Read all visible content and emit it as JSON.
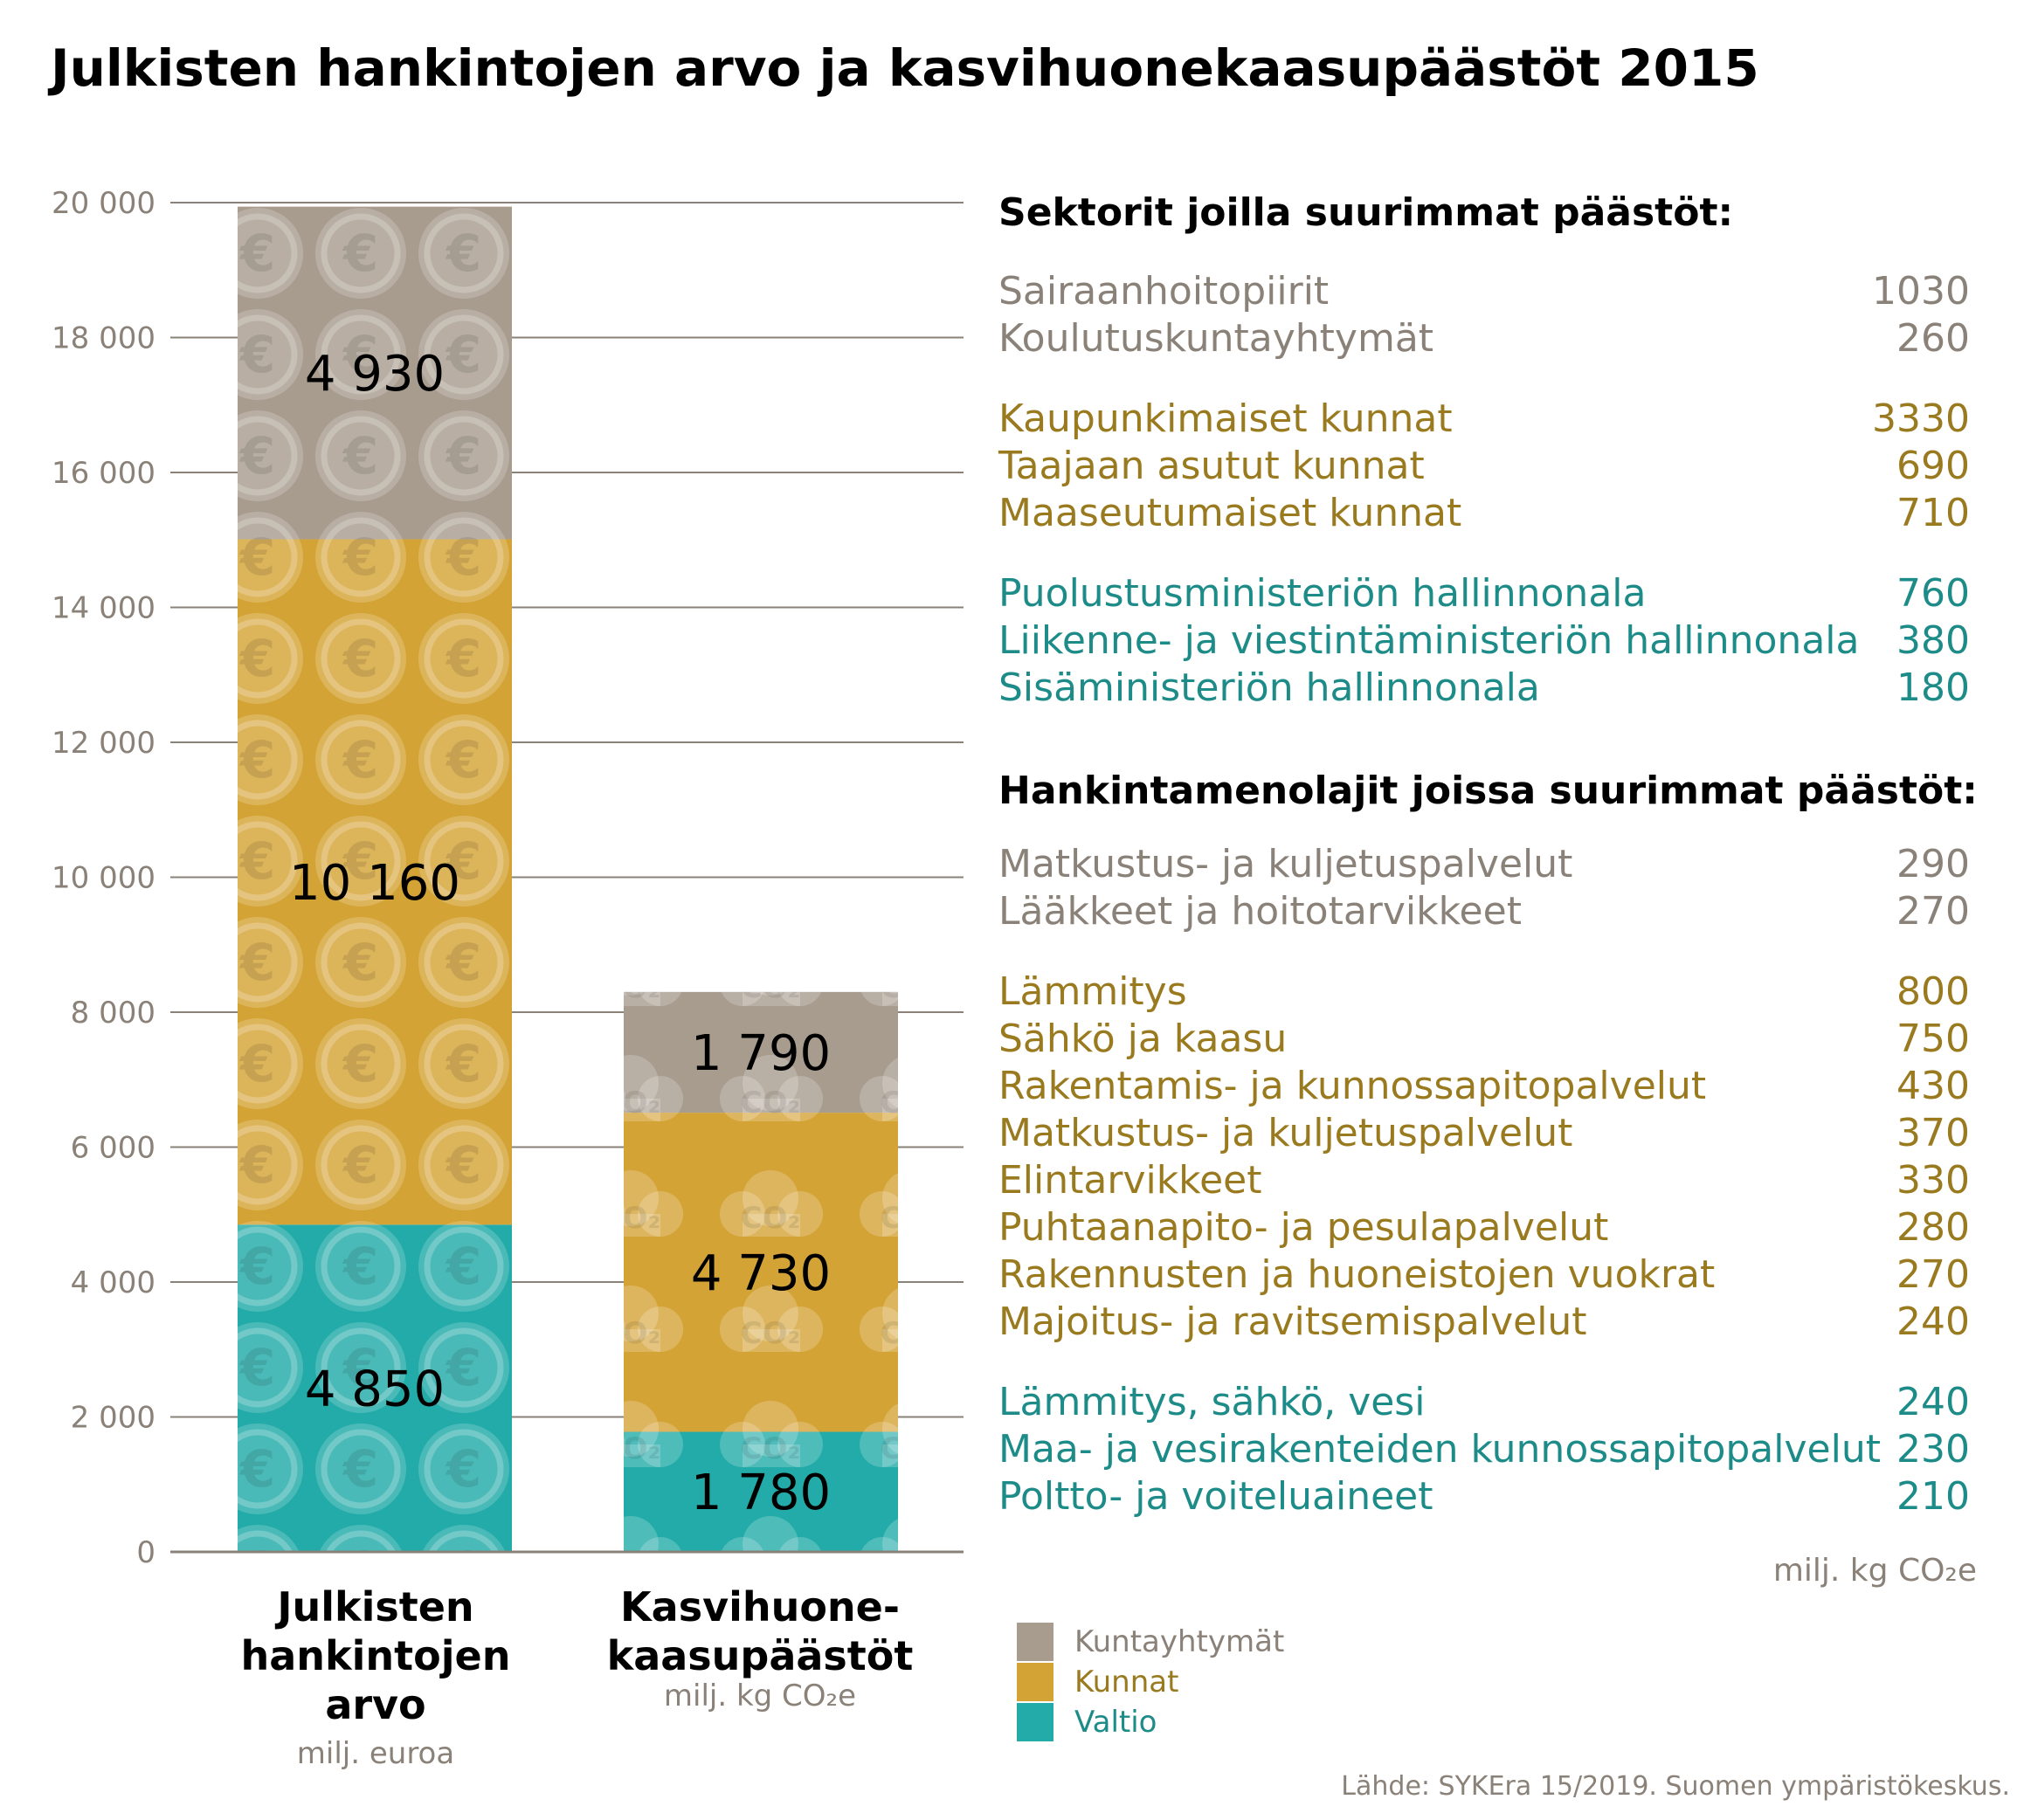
{
  "title": "Julkisten hankintojen arvo ja kasvihuonekaasupäästöt 2015",
  "colors": {
    "kuntayhtymat": "#a89c8f",
    "kunnat": "#d4a336",
    "valtio": "#22aba8",
    "grid": "#8a8178",
    "text_grey": "#8a8178",
    "text_gold": "#9a7a1f",
    "text_teal": "#1d8c88"
  },
  "chart_data": {
    "type": "bar",
    "stacked": true,
    "categories": [
      "Julkisten hankintojen arvo",
      "Kasvihuonekaasupäästöt"
    ],
    "category_titles": [
      [
        "Julkisten",
        "hankintojen",
        "arvo"
      ],
      [
        "Kasvihuone-",
        "kaasupäästöt"
      ]
    ],
    "category_units": [
      "milj. euroa",
      "milj. kg CO₂e"
    ],
    "series": [
      {
        "name": "Valtio",
        "color": "#22aba8",
        "values": [
          4850,
          1780
        ],
        "labels": [
          "4 850",
          "1 780"
        ]
      },
      {
        "name": "Kunnat",
        "color": "#d4a336",
        "values": [
          10160,
          4730
        ],
        "labels": [
          "10 160",
          "4 730"
        ]
      },
      {
        "name": "Kuntayhtymät",
        "color": "#a89c8f",
        "values": [
          4930,
          1790
        ],
        "labels": [
          "4 930",
          "1 790"
        ]
      }
    ],
    "ylim": [
      0,
      20000
    ],
    "yticks": [
      0,
      2000,
      4000,
      6000,
      8000,
      10000,
      12000,
      14000,
      16000,
      18000,
      20000
    ],
    "ytick_labels": [
      "0",
      "2 000",
      "4 000",
      "6 000",
      "8 000",
      "10 000",
      "12 000",
      "14 000",
      "16 000",
      "18 000",
      "20 000"
    ],
    "grid": true,
    "legend_position": "bottom-right"
  },
  "legend": [
    {
      "label": "Kuntayhtymät",
      "color": "#a89c8f"
    },
    {
      "label": "Kunnat",
      "color": "#d4a336"
    },
    {
      "label": "Valtio",
      "color": "#22aba8"
    }
  ],
  "sectors": {
    "heading": "Sektorit joilla suurimmat päästöt:",
    "groups": [
      {
        "color": "#8a8178",
        "items": [
          {
            "label": "Sairaanhoitopiirit",
            "value": "1030"
          },
          {
            "label": "Koulutuskuntayhtymät",
            "value": "260"
          }
        ]
      },
      {
        "color": "#9a7a1f",
        "items": [
          {
            "label": "Kaupunkimaiset kunnat",
            "value": "3330"
          },
          {
            "label": "Taajaan asutut kunnat",
            "value": "690"
          },
          {
            "label": "Maaseutumaiset kunnat",
            "value": "710"
          }
        ]
      },
      {
        "color": "#1d8c88",
        "items": [
          {
            "label": "Puolustusministeriön hallinnonala",
            "value": "760"
          },
          {
            "label": "Liikenne- ja viestintäministeriön hallinnonala",
            "value": "380"
          },
          {
            "label": "Sisäministeriön hallinnonala",
            "value": "180"
          }
        ]
      }
    ]
  },
  "types": {
    "heading": "Hankintamenolajit joissa suurimmat päästöt:",
    "groups": [
      {
        "color": "#8a8178",
        "items": [
          {
            "label": "Matkustus- ja kuljetuspalvelut",
            "value": "290"
          },
          {
            "label": "Lääkkeet ja hoitotarvikkeet",
            "value": "270"
          }
        ]
      },
      {
        "color": "#9a7a1f",
        "items": [
          {
            "label": "Lämmitys",
            "value": "800"
          },
          {
            "label": "Sähkö ja kaasu",
            "value": "750"
          },
          {
            "label": "Rakentamis- ja kunnossapitopalvelut",
            "value": "430"
          },
          {
            "label": "Matkustus- ja kuljetuspalvelut",
            "value": "370"
          },
          {
            "label": "Elintarvikkeet",
            "value": "330"
          },
          {
            "label": "Puhtaanapito- ja pesulapalvelut",
            "value": "280"
          },
          {
            "label": "Rakennusten ja huoneistojen vuokrat",
            "value": "270"
          },
          {
            "label": "Majoitus- ja ravitsemispalvelut",
            "value": "240"
          }
        ]
      },
      {
        "color": "#1d8c88",
        "items": [
          {
            "label": "Lämmitys, sähkö, vesi",
            "value": "240"
          },
          {
            "label": "Maa- ja vesirakenteiden kunnossapitopalvelut",
            "value": "230"
          },
          {
            "label": "Poltto- ja voiteluaineet",
            "value": "210"
          }
        ]
      }
    ]
  },
  "unit_note": "milj. kg CO₂e",
  "source": "Lähde: SYKEra 15/2019. Suomen ympäristökeskus."
}
